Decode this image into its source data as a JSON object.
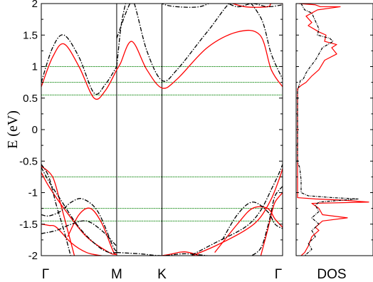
{
  "chart_data": [
    {
      "type": "line",
      "panel": "band-structure",
      "ylabel": "E (eV)",
      "ylim": [
        -2,
        2
      ],
      "yticks": [
        -2,
        -1.5,
        -1,
        -0.5,
        0,
        0.5,
        1,
        1.5,
        2
      ],
      "ytick_labels": [
        "-2",
        "-1.5",
        "-1",
        "-0.5",
        "0",
        "0.5",
        "1",
        "1.5",
        "2"
      ],
      "xlim": [
        0,
        3.2
      ],
      "k_points": [
        {
          "label": "Γ",
          "x": 0
        },
        {
          "label": "M",
          "x": 1.0
        },
        {
          "label": "K",
          "x": 1.6
        },
        {
          "label": "Γ",
          "x": 3.2
        }
      ],
      "reference_levels": [
        1.0,
        0.75,
        0.55,
        -0.75,
        -1.25,
        -1.45
      ],
      "colors": {
        "series_red": "#ff0000",
        "series_black": "#000000",
        "reference": "#008000",
        "kpath_line": "#000000"
      },
      "series": [
        {
          "style": "solid",
          "color": "#ff0000",
          "bands": [
            {
              "x": [
                0,
                0.15,
                0.3,
                0.5,
                0.7,
                0.85,
                1.0
              ],
              "y": [
                0.68,
                1.15,
                1.36,
                1.0,
                0.5,
                0.62,
                0.95
              ]
            },
            {
              "x": [
                1.0,
                1.05,
                1.2,
                1.4,
                1.6,
                1.8,
                2.2,
                2.6,
                2.9,
                3.05,
                3.2
              ],
              "y": [
                0.95,
                1.05,
                1.4,
                0.95,
                0.66,
                0.8,
                1.3,
                1.55,
                1.5,
                0.95,
                0.68
              ]
            },
            {
              "x": [
                2.0,
                2.4,
                2.7,
                3.0,
                3.05,
                3.2
              ],
              "y": [
                2.15,
                2.05,
                1.95,
                1.95,
                2.0,
                2.0
              ]
            },
            {
              "x": [
                0,
                0.1,
                0.3,
                0.6,
                0.9,
                1.0
              ],
              "y": [
                -0.68,
                -0.9,
                -1.25,
                -1.7,
                -1.95,
                -1.98
              ]
            },
            {
              "x": [
                0,
                0.15,
                0.25,
                0.35,
                0.45
              ],
              "y": [
                -0.58,
                -0.75,
                -1.15,
                -1.6,
                -2.05
              ]
            },
            {
              "x": [
                0,
                0.1,
                0.2,
                0.4,
                0.6,
                0.8,
                1.0
              ],
              "y": [
                -1.5,
                -1.52,
                -1.55,
                -1.8,
                -1.95,
                -2.0,
                -2.02
              ]
            },
            {
              "x": [
                0.35,
                0.5,
                0.65,
                0.8,
                0.95,
                1.0
              ],
              "y": [
                -1.7,
                -1.35,
                -1.25,
                -1.48,
                -1.92,
                -1.98
              ]
            },
            {
              "x": [
                1.3,
                1.5,
                1.7,
                1.9,
                2.1,
                2.3
              ],
              "y": [
                -2.05,
                -2.02,
                -1.98,
                -1.94,
                -2.0,
                -2.1
              ]
            },
            {
              "x": [
                1.9,
                2.3,
                2.7,
                2.9,
                3.05,
                3.15,
                3.2
              ],
              "y": [
                -2.05,
                -1.85,
                -1.6,
                -1.4,
                -1.1,
                -0.8,
                -0.62
              ]
            },
            {
              "x": [
                2.9,
                3.0,
                3.05,
                3.1,
                3.2
              ],
              "y": [
                -2.05,
                -1.6,
                -1.35,
                -1.15,
                -1.0
              ]
            },
            {
              "x": [
                2.3,
                2.6,
                2.8,
                3.0,
                3.1,
                3.2
              ],
              "y": [
                -1.95,
                -1.5,
                -1.25,
                -1.25,
                -1.42,
                -1.55
              ]
            }
          ]
        },
        {
          "style": "dashed",
          "color": "#000000",
          "bands": [
            {
              "x": [
                0,
                0.15,
                0.3,
                0.5,
                0.7,
                0.85,
                1.0
              ],
              "y": [
                0.75,
                1.3,
                1.5,
                1.15,
                0.58,
                0.72,
                1.0
              ]
            },
            {
              "x": [
                1.0,
                1.08,
                1.2,
                1.4,
                1.6,
                1.8,
                2.2,
                2.6,
                2.9,
                3.05,
                3.2
              ],
              "y": [
                1.0,
                1.8,
                2.1,
                1.25,
                0.78,
                0.95,
                1.55,
                2.1,
                1.8,
                1.2,
                0.8
              ]
            },
            {
              "x": [
                1.0,
                1.2,
                1.4,
                1.6,
                1.8,
                2.1,
                2.3
              ],
              "y": [
                1.45,
                2.05,
                2.15,
                2.0,
                1.95,
                1.95,
                2.05
              ]
            },
            {
              "x": [
                2.4,
                2.6,
                2.8,
                3.0,
                3.2
              ],
              "y": [
                2.05,
                1.95,
                2.0,
                1.95,
                1.98
              ]
            },
            {
              "x": [
                0,
                0.1,
                0.25,
                0.5,
                0.75,
                0.9,
                1.0
              ],
              "y": [
                -0.6,
                -0.82,
                -1.1,
                -1.55,
                -1.85,
                -1.95,
                -1.95
              ]
            },
            {
              "x": [
                0,
                0.1,
                0.2,
                0.3,
                0.4
              ],
              "y": [
                -0.55,
                -0.75,
                -1.2,
                -1.6,
                -2.05
              ]
            },
            {
              "x": [
                0,
                0.1,
                0.25,
                0.4,
                0.55,
                0.75,
                0.95,
                1.0
              ],
              "y": [
                -1.35,
                -1.37,
                -1.3,
                -1.15,
                -1.1,
                -1.3,
                -1.85,
                -1.92
              ]
            },
            {
              "x": [
                0,
                0.2,
                0.4,
                0.6,
                0.8,
                1.0
              ],
              "y": [
                -1.65,
                -1.6,
                -1.5,
                -1.45,
                -1.6,
                -1.85
              ]
            },
            {
              "x": [
                1.0,
                1.3,
                1.6,
                1.9,
                2.2
              ],
              "y": [
                -1.95,
                -1.97,
                -2.0,
                -1.97,
                -2.0
              ]
            },
            {
              "x": [
                1.9,
                2.3,
                2.7,
                2.9,
                3.05,
                3.15,
                3.2
              ],
              "y": [
                -2.05,
                -1.8,
                -1.55,
                -1.3,
                -0.95,
                -0.7,
                -0.55
              ]
            },
            {
              "x": [
                2.7,
                2.9,
                3.0,
                3.05,
                3.1,
                3.2
              ],
              "y": [
                -2.05,
                -1.9,
                -1.55,
                -1.3,
                -1.05,
                -0.9
              ]
            },
            {
              "x": [
                2.4,
                2.6,
                2.8,
                3.0,
                3.1,
                3.2
              ],
              "y": [
                -1.75,
                -1.35,
                -1.15,
                -1.3,
                -1.5,
                -1.57
              ]
            }
          ]
        }
      ]
    },
    {
      "type": "line",
      "panel": "dos",
      "xlabel": "DOS",
      "ylim": [
        -2,
        2
      ],
      "orientation": "horizontal",
      "series": [
        {
          "style": "solid",
          "color": "#ff0000",
          "points": [
            [
              0.02,
              2.0
            ],
            [
              0.25,
              1.98
            ],
            [
              0.32,
              1.95
            ],
            [
              0.6,
              1.95
            ],
            [
              0.28,
              1.9
            ],
            [
              0.12,
              1.8
            ],
            [
              0.2,
              1.7
            ],
            [
              0.15,
              1.65
            ],
            [
              0.3,
              1.55
            ],
            [
              0.4,
              1.5
            ],
            [
              0.38,
              1.4
            ],
            [
              0.55,
              1.35
            ],
            [
              0.48,
              1.3
            ],
            [
              0.55,
              1.2
            ],
            [
              0.38,
              1.1
            ],
            [
              0.3,
              0.95
            ],
            [
              0.2,
              0.85
            ],
            [
              0.12,
              0.75
            ],
            [
              0.05,
              0.7
            ],
            [
              0.03,
              0.68
            ],
            [
              0.0,
              0.65
            ],
            [
              0.0,
              -1.08
            ],
            [
              0.25,
              -1.1
            ],
            [
              0.65,
              -1.12
            ],
            [
              1.0,
              -1.15
            ],
            [
              0.2,
              -1.17
            ],
            [
              0.3,
              -1.25
            ],
            [
              0.35,
              -1.35
            ],
            [
              0.7,
              -1.4
            ],
            [
              0.35,
              -1.45
            ],
            [
              0.25,
              -1.55
            ],
            [
              0.3,
              -1.6
            ],
            [
              0.2,
              -1.7
            ],
            [
              0.15,
              -1.85
            ],
            [
              0.1,
              -1.95
            ],
            [
              0.05,
              -2.0
            ]
          ]
        },
        {
          "style": "dashed",
          "color": "#000000",
          "points": [
            [
              0.05,
              2.0
            ],
            [
              0.1,
              1.9
            ],
            [
              0.2,
              1.85
            ],
            [
              0.3,
              1.6
            ],
            [
              0.28,
              1.5
            ],
            [
              0.45,
              1.45
            ],
            [
              0.5,
              1.4
            ],
            [
              0.35,
              1.3
            ],
            [
              0.25,
              1.1
            ],
            [
              0.18,
              1.0
            ],
            [
              0.12,
              0.9
            ],
            [
              0.08,
              0.8
            ],
            [
              0.04,
              0.78
            ],
            [
              0.02,
              0.7
            ],
            [
              0.0,
              0.6
            ],
            [
              0.0,
              -0.52
            ],
            [
              0.03,
              -0.6
            ],
            [
              0.05,
              -0.8
            ],
            [
              0.05,
              -1.0
            ],
            [
              0.15,
              -1.05
            ],
            [
              0.5,
              -1.08
            ],
            [
              0.85,
              -1.1
            ],
            [
              0.3,
              -1.15
            ],
            [
              0.25,
              -1.2
            ],
            [
              0.3,
              -1.3
            ],
            [
              0.2,
              -1.4
            ],
            [
              0.3,
              -1.5
            ],
            [
              0.2,
              -1.6
            ],
            [
              0.25,
              -1.7
            ],
            [
              0.15,
              -1.8
            ],
            [
              0.2,
              -1.9
            ],
            [
              0.1,
              -2.0
            ]
          ]
        }
      ]
    }
  ]
}
